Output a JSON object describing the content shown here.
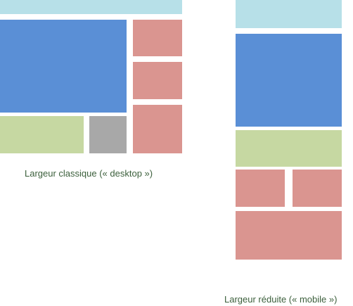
{
  "colors": {
    "header": "#b7e0e8",
    "main": "#5a8fd6",
    "green": "#c6d8a2",
    "gray": "#a8a8a8",
    "red": "#da9590",
    "caption_text": "#3b5f3b"
  },
  "desktop": {
    "caption": "Largeur classique (« desktop »)"
  },
  "mobile": {
    "caption": "Largeur réduite (« mobile »)"
  }
}
